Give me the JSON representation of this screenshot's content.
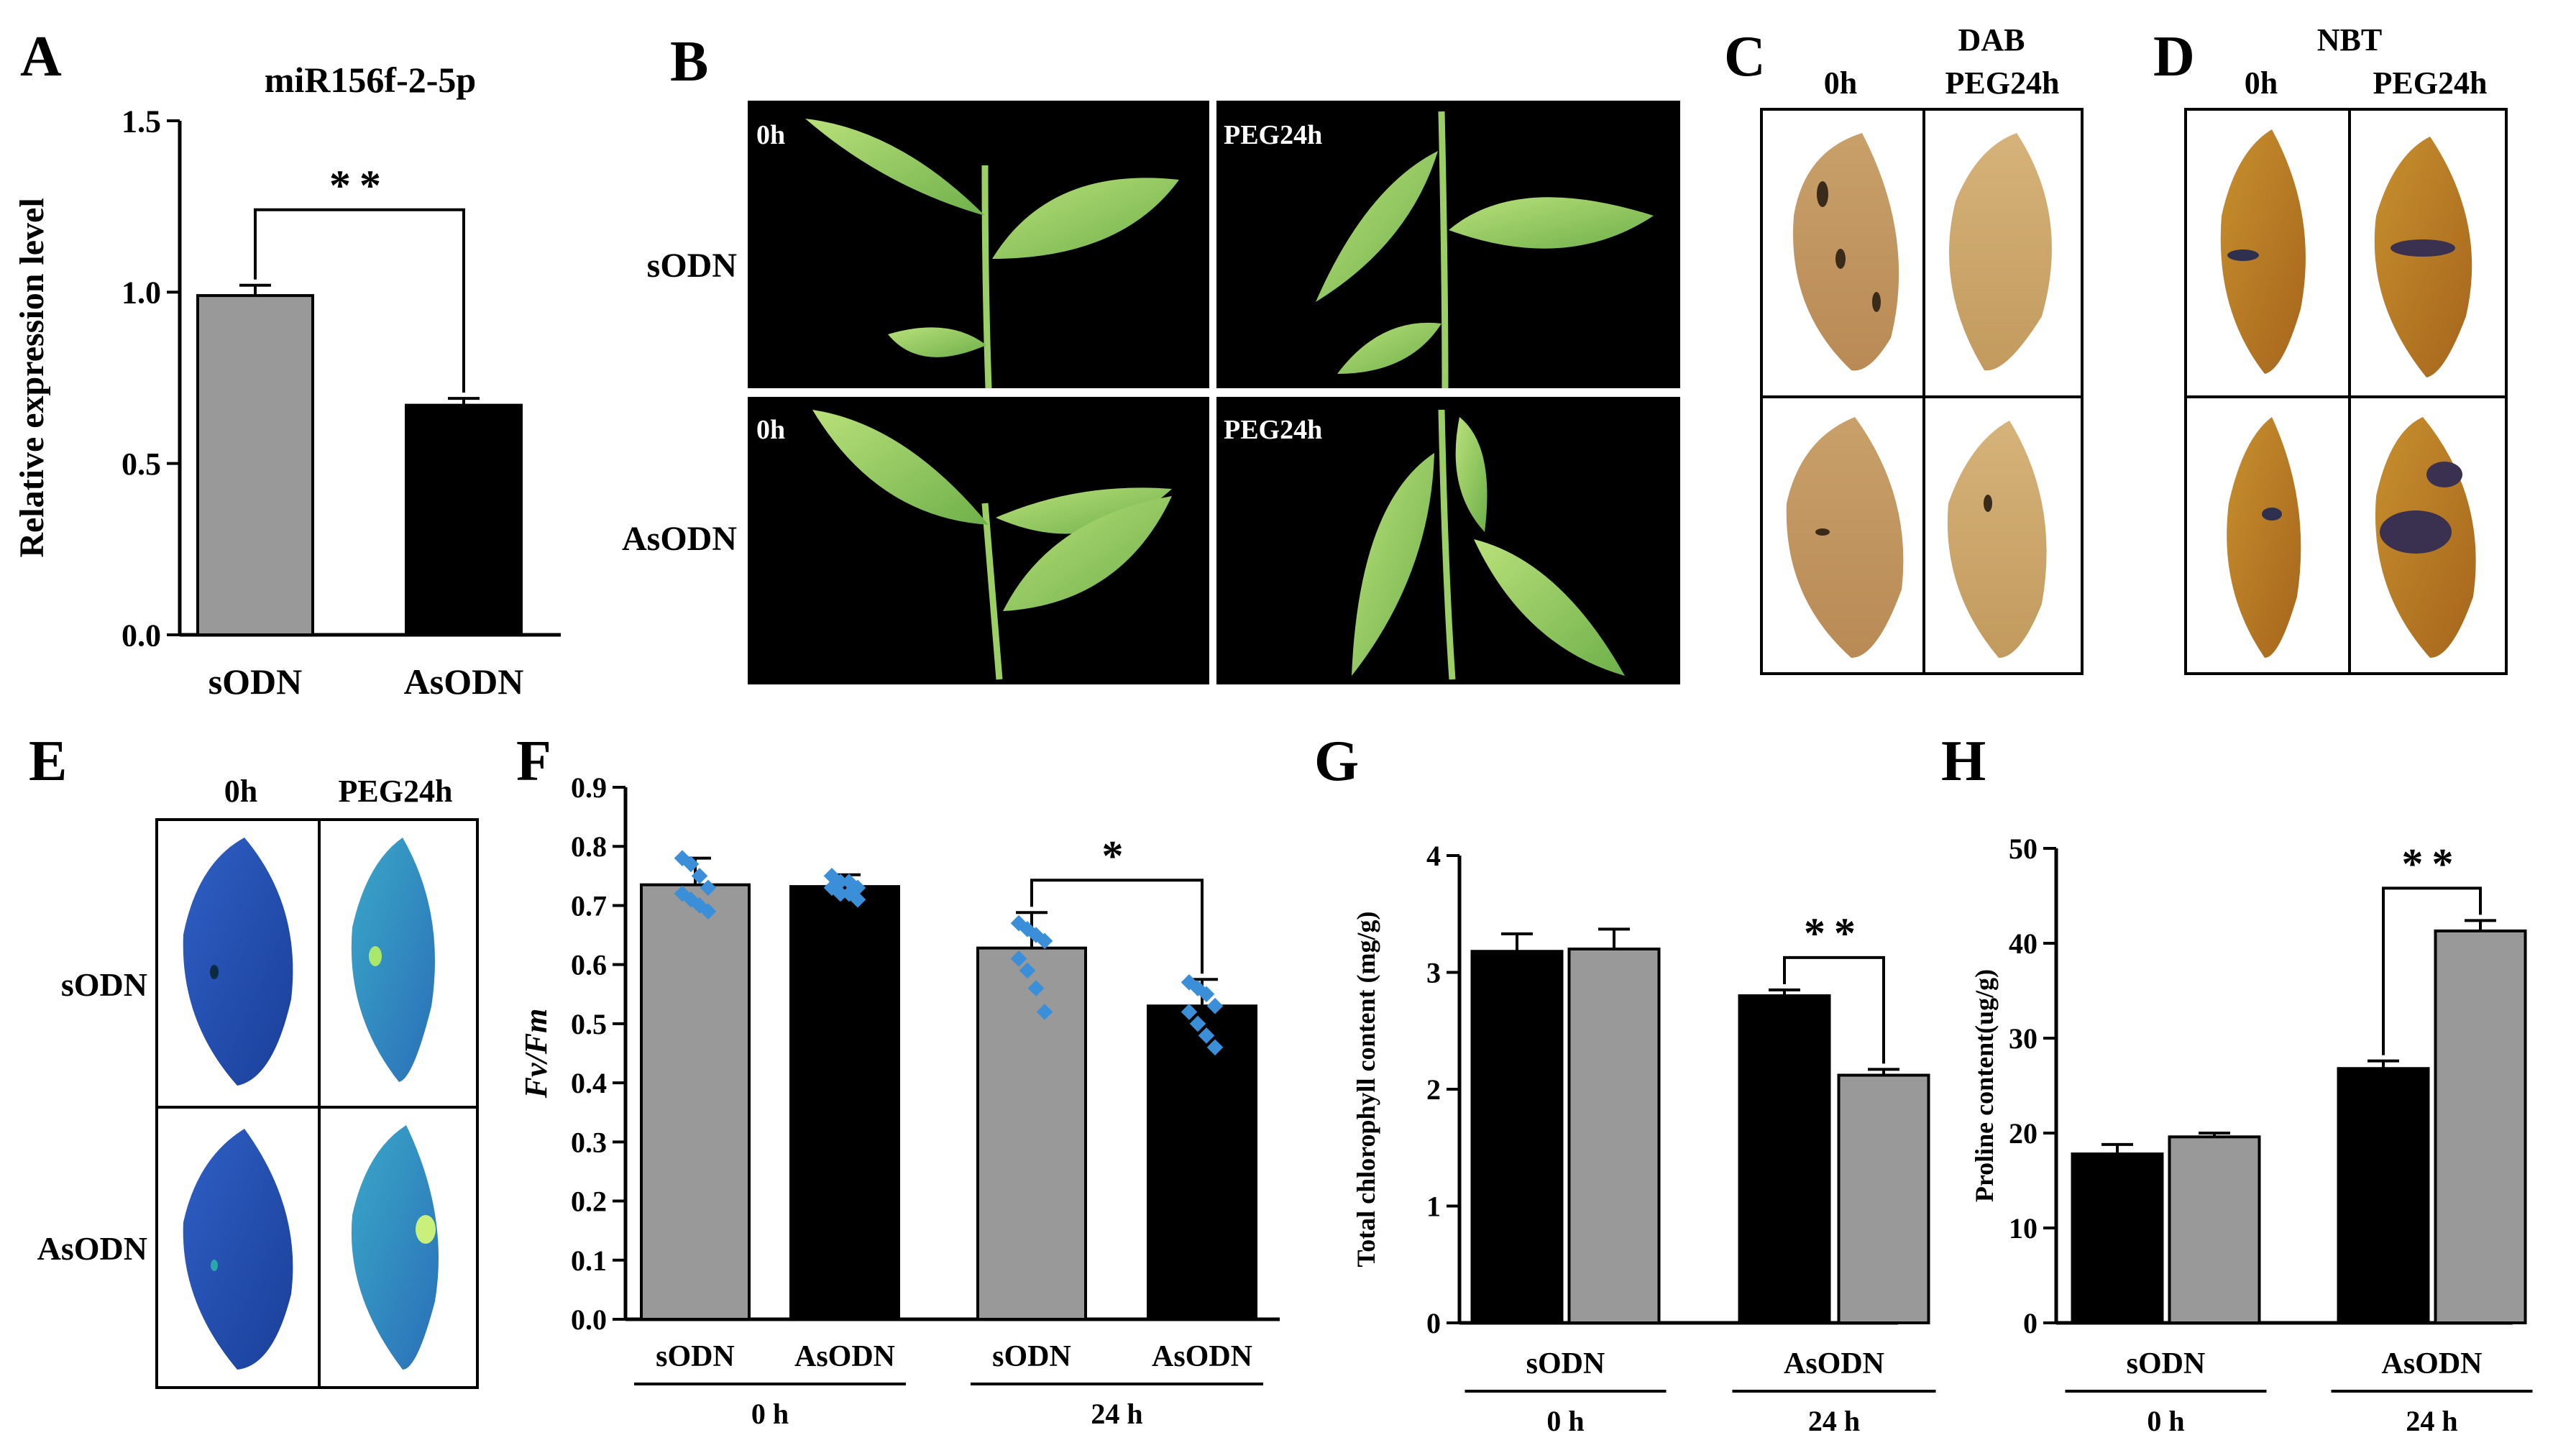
{
  "panel_letters": [
    "A",
    "B",
    "C",
    "D",
    "E",
    "F",
    "G",
    "H"
  ],
  "colors": {
    "gray": "#999999",
    "black": "#000000",
    "dot": "#3a8fd8",
    "photo_bg": "#000000",
    "leaf": "#8fc95a"
  },
  "panel_b": {
    "col_labels": [
      "0h",
      "PEG24h"
    ],
    "row_labels": [
      "sODN",
      "AsODN"
    ]
  },
  "panel_c": {
    "title": "DAB",
    "col_labels": [
      "0h",
      "PEG24h"
    ]
  },
  "panel_d": {
    "title": "NBT",
    "col_labels": [
      "0h",
      "PEG24h"
    ]
  },
  "panel_e": {
    "col_labels": [
      "0h",
      "PEG24h"
    ],
    "row_labels": [
      "sODN",
      "AsODN"
    ]
  },
  "chart_data": [
    {
      "panel": "A",
      "type": "bar",
      "title": "miR156f-2-5p",
      "xlabel": "",
      "ylabel": "Relative expression level",
      "categories": [
        "sODN",
        "AsODN"
      ],
      "values": [
        0.99,
        0.67
      ],
      "errors": [
        0.03,
        0.02
      ],
      "colors": [
        "gray",
        "black"
      ],
      "ylim": [
        0,
        1.5
      ],
      "yticks": [
        "0.0",
        "0.5",
        "1.0",
        "1.5"
      ],
      "significance": [
        {
          "from": 0,
          "to": 1,
          "label": "**"
        }
      ],
      "grid": false
    },
    {
      "panel": "F",
      "type": "bar",
      "title": "",
      "ylabel": "Fv/Fm",
      "categories": [
        "sODN",
        "AsODN",
        "sODN",
        "AsODN"
      ],
      "groups": [
        {
          "label": "0 h",
          "members": [
            0,
            1
          ]
        },
        {
          "label": "24 h",
          "members": [
            2,
            3
          ]
        }
      ],
      "values": [
        0.735,
        0.732,
        0.628,
        0.53
      ],
      "errors": [
        0.045,
        0.02,
        0.06,
        0.045
      ],
      "colors": [
        "gray",
        "black",
        "gray",
        "black"
      ],
      "points": [
        [
          0.78,
          0.77,
          0.75,
          0.73,
          0.72,
          0.71,
          0.7,
          0.69
        ],
        [
          0.75,
          0.74,
          0.74,
          0.73,
          0.73,
          0.72,
          0.72,
          0.71
        ],
        [
          0.67,
          0.66,
          0.65,
          0.64,
          0.61,
          0.59,
          0.56,
          0.52
        ],
        [
          0.57,
          0.56,
          0.55,
          0.53,
          0.52,
          0.5,
          0.48,
          0.46
        ]
      ],
      "ylim": [
        0,
        0.9
      ],
      "yticks": [
        "0.0",
        "0.1",
        "0.2",
        "0.3",
        "0.4",
        "0.5",
        "0.6",
        "0.7",
        "0.8",
        "0.9"
      ],
      "significance": [
        {
          "from": 2,
          "to": 3,
          "label": "*"
        }
      ],
      "grid": false
    },
    {
      "panel": "G",
      "type": "bar",
      "title": "",
      "ylabel": "Total chlorophyll content (mg/g)",
      "categories": [
        "",
        "",
        "",
        ""
      ],
      "group_labels_top": [
        "sODN",
        "AsODN"
      ],
      "groups": [
        {
          "label": "0 h",
          "members": [
            0,
            1
          ]
        },
        {
          "label": "24 h",
          "members": [
            2,
            3
          ]
        }
      ],
      "values": [
        3.18,
        3.2,
        2.8,
        2.12
      ],
      "errors": [
        0.15,
        0.17,
        0.05,
        0.05
      ],
      "colors": [
        "black",
        "gray",
        "black",
        "gray"
      ],
      "ylim": [
        0,
        4
      ],
      "yticks": [
        "0",
        "1",
        "2",
        "3",
        "4"
      ],
      "significance": [
        {
          "from": 2,
          "to": 3,
          "label": "**"
        }
      ],
      "grid": false
    },
    {
      "panel": "H",
      "type": "bar",
      "title": "",
      "ylabel": "Proline content(ug/g)",
      "categories": [
        "",
        "",
        "",
        ""
      ],
      "group_labels_top": [
        "sODN",
        "AsODN"
      ],
      "groups": [
        {
          "label": "0 h",
          "members": [
            0,
            1
          ]
        },
        {
          "label": "24 h",
          "members": [
            2,
            3
          ]
        }
      ],
      "values": [
        17.8,
        19.6,
        26.8,
        41.3
      ],
      "errors": [
        1.0,
        0.4,
        0.8,
        1.1
      ],
      "colors": [
        "black",
        "gray",
        "black",
        "gray"
      ],
      "ylim": [
        0,
        50
      ],
      "yticks": [
        "0",
        "10",
        "20",
        "30",
        "40",
        "50"
      ],
      "significance": [
        {
          "from": 2,
          "to": 3,
          "label": "**"
        }
      ],
      "grid": false
    }
  ]
}
